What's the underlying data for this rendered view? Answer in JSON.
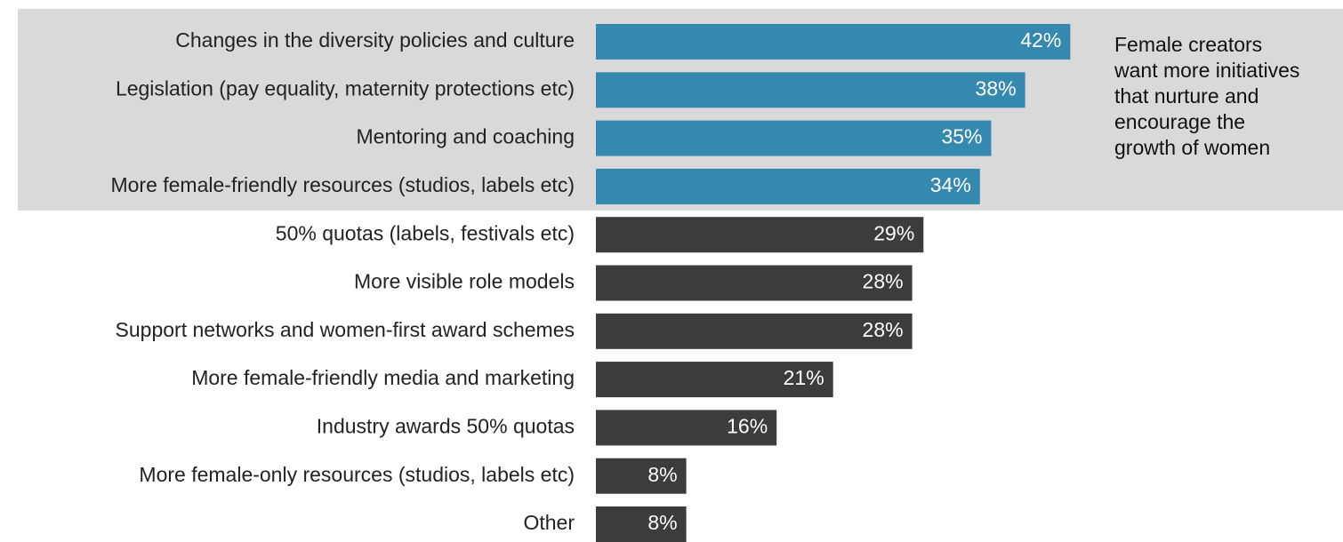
{
  "chart_data": {
    "type": "bar",
    "orientation": "horizontal",
    "title": "",
    "xlabel": "",
    "ylabel": "",
    "xlim": [
      0,
      42
    ],
    "categories": [
      "Changes in the diversity policies and culture",
      "Legislation (pay equality, maternity protections  etc)",
      "Mentoring and coaching",
      "More female-friendly resources (studios, labels etc)",
      "50% quotas (labels, festivals etc)",
      "More visible role models",
      "Support networks and women-first award schemes",
      "More female-friendly media and marketing",
      "Industry awards 50% quotas",
      "More female-only resources (studios, labels etc)",
      "Other"
    ],
    "values": [
      42,
      38,
      35,
      34,
      29,
      28,
      28,
      21,
      16,
      8,
      8
    ],
    "value_labels": [
      "42%",
      "38%",
      "35%",
      "34%",
      "29%",
      "28%",
      "28%",
      "21%",
      "16%",
      "8%",
      "8%"
    ],
    "highlighted_count": 4,
    "grid": false,
    "legend": "none"
  },
  "annotation": {
    "lines": [
      "Female creators",
      "want more initiatives",
      "that nurture and",
      "encourage the",
      "growth of women"
    ]
  },
  "colors": {
    "highlight_bar": "#3589b0",
    "other_bar": "#3c3c3c",
    "highlight_band": "#d9d9d9",
    "background": "#ffffff"
  }
}
